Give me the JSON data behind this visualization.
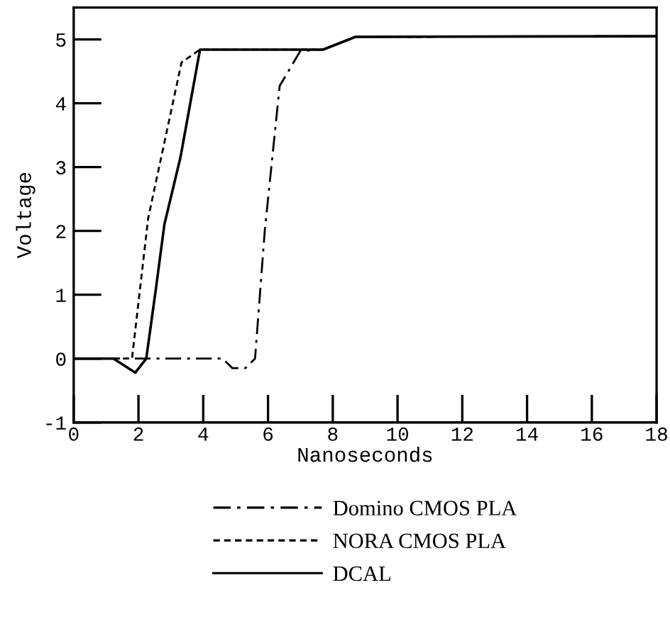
{
  "chart_data": {
    "type": "line",
    "xlabel": "Nanoseconds",
    "ylabel": "Voltage",
    "xlim": [
      0,
      18
    ],
    "ylim": [
      -1,
      5.5
    ],
    "xticks": [
      0,
      2,
      4,
      6,
      8,
      10,
      12,
      14,
      16,
      18
    ],
    "yticks": [
      -1,
      0,
      1,
      2,
      3,
      4,
      5
    ],
    "grid": false,
    "legend": "bottom",
    "series": [
      {
        "name": "Domino CMOS PLA",
        "color": "#000000",
        "line_style": "dashdot",
        "x": [
          0,
          4.6,
          4.9,
          5.3,
          5.6,
          5.9,
          6.36,
          7.0,
          7.7,
          8.7,
          18
        ],
        "values": [
          0,
          0,
          -0.15,
          -0.15,
          0,
          2.0,
          4.27,
          4.82,
          4.84,
          5.04,
          5.05
        ]
      },
      {
        "name": "NORA CMOS PLA",
        "color": "#000000",
        "line_style": "dashed",
        "x": [
          0,
          1.8,
          2.3,
          3.33,
          3.9,
          7.7,
          8.7,
          18
        ],
        "values": [
          0,
          0,
          2.2,
          4.64,
          4.84,
          4.84,
          5.04,
          5.05
        ]
      },
      {
        "name": "DCAL",
        "color": "#000000",
        "line_style": "solid",
        "x": [
          0,
          1.23,
          1.9,
          2.24,
          2.54,
          2.8,
          3.3,
          3.9,
          7.7,
          8.7,
          18
        ],
        "values": [
          0,
          0,
          -0.22,
          0,
          1.1,
          2.1,
          3.16,
          4.84,
          4.84,
          5.04,
          5.05
        ]
      }
    ]
  }
}
